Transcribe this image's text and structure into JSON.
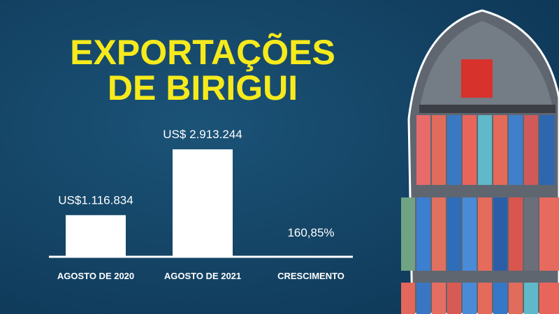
{
  "chart_data": {
    "type": "bar",
    "title": "EXPORTAÇÕES",
    "subtitle": "DE BIRIGUI",
    "categories": [
      "AGOSTO DE 2020",
      "AGOSTO DE 2021",
      "CRESCIMENTO"
    ],
    "values": [
      1116834,
      2913244,
      160.85
    ],
    "value_labels": [
      "US$1.116.834",
      "US$ 2.913.244",
      "160,85%"
    ],
    "color": "#ffffff",
    "ylim": [
      0,
      3808000
    ]
  }
}
